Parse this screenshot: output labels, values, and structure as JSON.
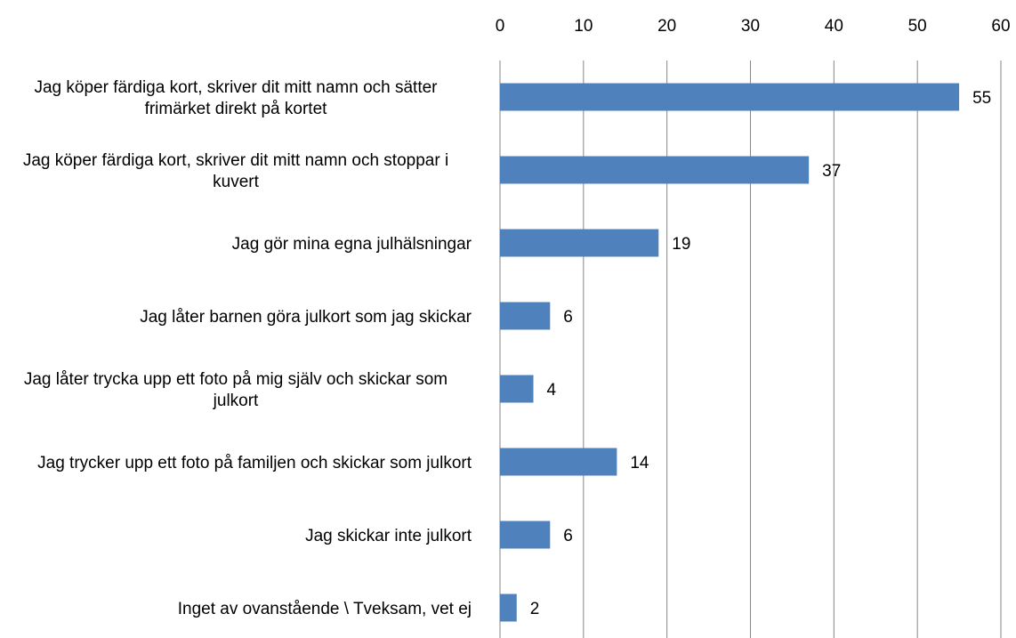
{
  "chart_data": {
    "type": "bar",
    "orientation": "horizontal",
    "categories": [
      "Jag köper färdiga kort, skriver dit mitt namn och sätter frimärket direkt på kortet",
      "Jag köper färdiga kort, skriver dit mitt namn och stoppar i kuvert",
      "Jag gör mina egna julhälsningar",
      "Jag låter barnen göra julkort som jag skickar",
      "Jag låter trycka upp ett foto på mig själv och skickar som julkort",
      "Jag trycker upp ett foto på familjen och skickar som julkort",
      "Jag skickar inte julkort",
      "Inget av ovanstående \\ Tveksam, vet ej"
    ],
    "values": [
      55,
      37,
      19,
      6,
      4,
      14,
      6,
      2
    ],
    "color": "#4f81bd",
    "xlim": [
      0,
      60
    ],
    "xticks": [
      0,
      10,
      20,
      30,
      40,
      50,
      60
    ],
    "grid": true
  }
}
